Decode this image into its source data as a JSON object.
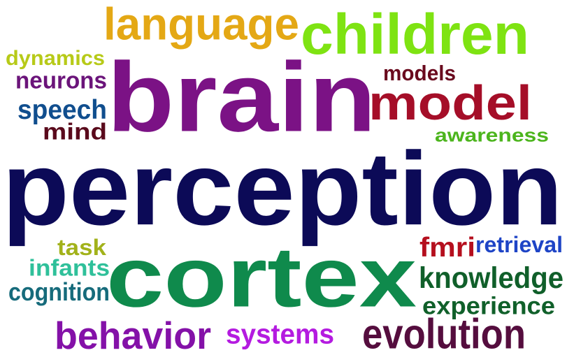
{
  "words": {
    "perception": {
      "text": "perception",
      "color": "#0c0a57"
    },
    "cortex": {
      "text": "cortex",
      "color": "#0f8a4c"
    },
    "brain": {
      "text": "brain",
      "color": "#7b1285"
    },
    "children": {
      "text": "children",
      "color": "#7ee312"
    },
    "language": {
      "text": "language",
      "color": "#e4a815"
    },
    "model": {
      "text": "model",
      "color": "#a50e28"
    },
    "models": {
      "text": "models",
      "color": "#6a0a1e"
    },
    "dynamics": {
      "text": "dynamics",
      "color": "#b7ca18"
    },
    "neurons": {
      "text": "neurons",
      "color": "#6b147a"
    },
    "speech": {
      "text": "speech",
      "color": "#104e8e"
    },
    "mind": {
      "text": "mind",
      "color": "#5a0a1c"
    },
    "awareness": {
      "text": "awareness",
      "color": "#4cb51d"
    },
    "task": {
      "text": "task",
      "color": "#a2b21a"
    },
    "infants": {
      "text": "infants",
      "color": "#2fc09a"
    },
    "cognition": {
      "text": "cognition",
      "color": "#166b7b"
    },
    "behavior": {
      "text": "behavior",
      "color": "#8411a8"
    },
    "systems": {
      "text": "systems",
      "color": "#b41be0"
    },
    "evolution": {
      "text": "evolution",
      "color": "#550d3e"
    },
    "fmri": {
      "text": "fmri",
      "color": "#b50f1e"
    },
    "retrieval": {
      "text": "retrieval",
      "color": "#1e44c6"
    },
    "knowledge": {
      "text": "knowledge",
      "color": "#105f2a"
    },
    "experience": {
      "text": "experience",
      "color": "#10602a"
    }
  }
}
